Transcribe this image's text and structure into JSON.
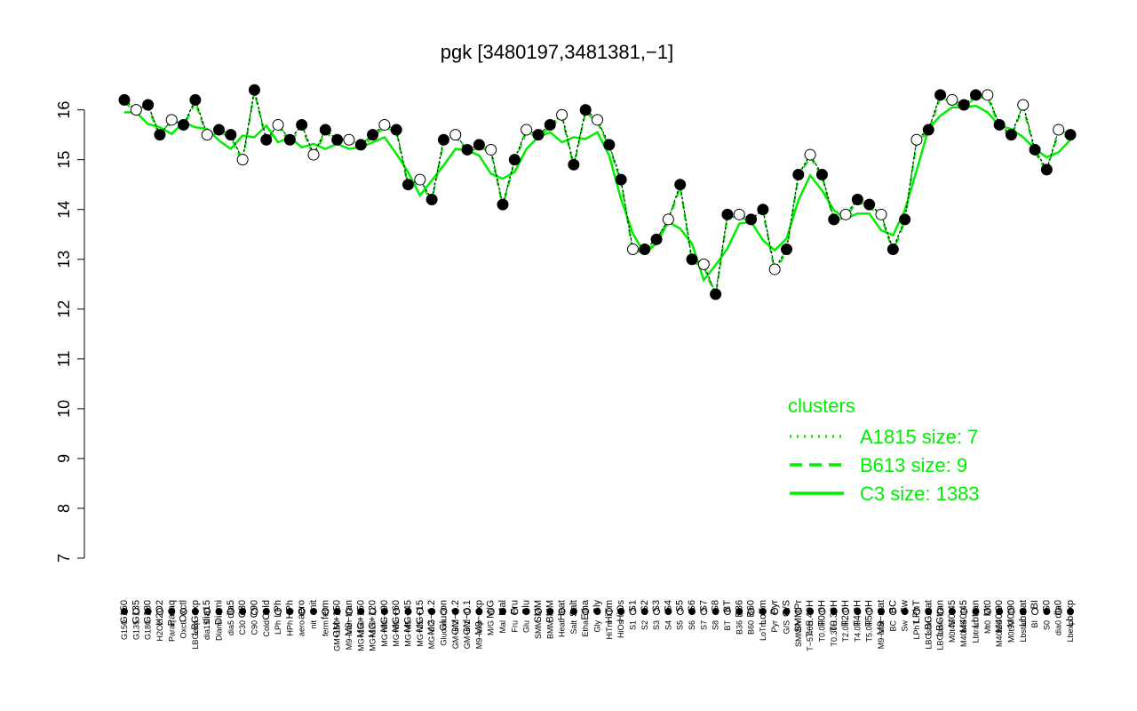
{
  "chart_data": {
    "type": "line",
    "title": "pgk [3480197,3481381,−1]",
    "xlabel": "",
    "ylabel": "",
    "ylim": [
      7,
      16.6
    ],
    "yticks": [
      7,
      8,
      9,
      10,
      11,
      12,
      13,
      14,
      15,
      16
    ],
    "categories": [
      "G150",
      "G135",
      "G180",
      "H2O2",
      "Paraq",
      "Oxctl",
      "LBGexp",
      "dia15",
      "Diami",
      "dia5",
      "C30",
      "C90",
      "Cold",
      "LPh",
      "HPh",
      "aero",
      "nit",
      "ferm",
      "GM+150",
      "M9−tran",
      "MG+150",
      "MG+120",
      "MG+90",
      "MG+60",
      "MG+45",
      "MG+15",
      "MG−0.2",
      "Glucon",
      "GM−0.2",
      "GM−0.1",
      "M9−exp",
      "M/G",
      "Mal",
      "Fru",
      "Glu",
      "SMM",
      "BMM",
      "Heat",
      "Salt",
      "Etha",
      "Gly",
      "HiTm",
      "HiOs",
      "S1",
      "S2",
      "S3",
      "S4",
      "S5",
      "S6",
      "S7",
      "S8",
      "BT",
      "B36",
      "B60",
      "LoTm",
      "Pyr",
      "G/S",
      "SMMPr",
      "T−5.40H",
      "T0.0H",
      "T0.30H",
      "T2.0H",
      "T4.0H",
      "T5.0H",
      "M9−stat",
      "BC",
      "Sw",
      "LPhT",
      "LBGstat",
      "LBGtran",
      "M0t45",
      "M40t45",
      "Lbtran",
      "Mt0",
      "M40t90",
      "M0t90",
      "Lbstat",
      "BI",
      "S0",
      "dia0",
      "Lbexp"
    ],
    "series": [
      {
        "name": "",
        "values": [
          16.2,
          16.0,
          16.1,
          15.5,
          15.8,
          15.7,
          16.2,
          15.5,
          15.6,
          15.5,
          15.0,
          16.4,
          15.4,
          15.7,
          15.4,
          15.7,
          15.1,
          15.6,
          15.4,
          15.4,
          15.3,
          15.5,
          15.7,
          15.6,
          14.5,
          14.6,
          14.2,
          15.4,
          15.5,
          15.2,
          15.3,
          15.2,
          14.1,
          15.0,
          15.6,
          15.5,
          15.7,
          15.9,
          14.9,
          16.0,
          15.8,
          15.3,
          14.6,
          13.2,
          13.2,
          13.4,
          13.8,
          14.5,
          13.0,
          12.9,
          12.3,
          13.9,
          13.9,
          13.8,
          14.0,
          12.8,
          13.2,
          14.7,
          15.1,
          14.7,
          13.8,
          13.9,
          14.2,
          14.1,
          13.9,
          13.2,
          13.8,
          15.4,
          15.6,
          16.3,
          16.2,
          16.1,
          16.3,
          16.3,
          15.7,
          15.5,
          16.1,
          15.2,
          14.8,
          15.6,
          15.5
        ]
      },
      {
        "name": "",
        "style": "dashed"
      },
      {
        "name": "",
        "style": "dotted"
      }
    ],
    "legend": {
      "title": "clusters",
      "position": "bottom-right",
      "entries": [
        {
          "label": "A1815 size: 7",
          "style": "dotted"
        },
        {
          "label": "B613 size: 9",
          "style": "dashed"
        },
        {
          "label": "C3 size: 1383",
          "style": "solid"
        }
      ]
    },
    "colors": {
      "points": "#000000",
      "cluster": "#00ee00"
    }
  }
}
